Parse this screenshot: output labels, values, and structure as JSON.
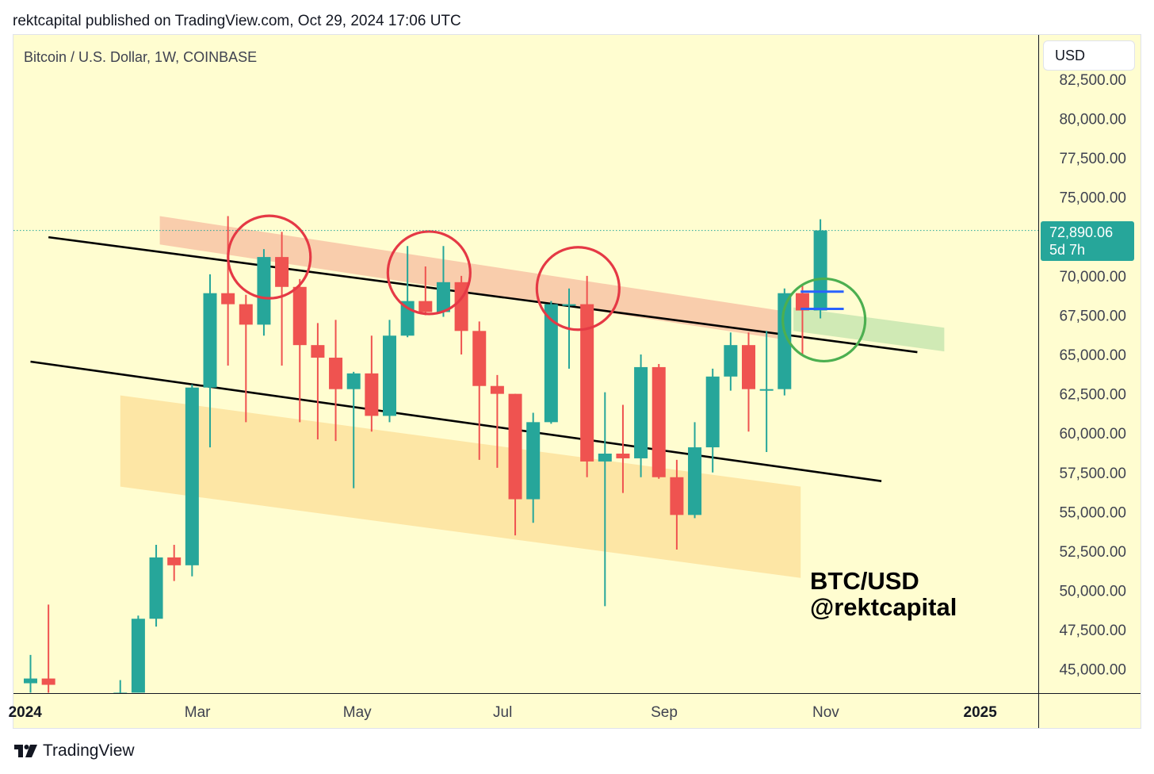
{
  "header": {
    "published": "rektcapital published on TradingView.com, Oct 29, 2024 17:06 UTC"
  },
  "symbol": {
    "title": "Bitcoin / U.S. Dollar, 1W, COINBASE"
  },
  "currency_button": {
    "label": "USD"
  },
  "last_price": {
    "value": "72,890.06",
    "countdown": "5d 7h"
  },
  "watermark": {
    "line1": "BTC/USD",
    "line2": "@rektcapital"
  },
  "footer": {
    "brand": "TradingView"
  },
  "colors": {
    "up": "#26a69a",
    "down": "#ef5350",
    "background": "#fffdd0",
    "resistance_zone": "#f8c4a6",
    "support_zone": "#fde3a0",
    "breakout_zone": "#c8e6b0",
    "circle_red": "#e53945",
    "circle_green": "#4caf50",
    "retest_marker": "#2962ff"
  },
  "chart_data": {
    "type": "candlestick",
    "timeframe": "1W",
    "ylim": [
      43500,
      83000
    ],
    "price_axis_ticks": [
      "82,500.00",
      "80,000.00",
      "77,500.00",
      "75,000.00",
      "70,000.00",
      "67,500.00",
      "65,000.00",
      "62,500.00",
      "60,000.00",
      "57,500.00",
      "55,000.00",
      "52,500.00",
      "50,000.00",
      "47,500.00",
      "45,000.00"
    ],
    "time_axis_labels": [
      "2024",
      "Mar",
      "May",
      "Jul",
      "Sep",
      "Nov",
      "2025"
    ],
    "time_axis_bold": [
      "2024",
      "2025"
    ],
    "last_price": 72890.06,
    "candles": [
      {
        "i": 0,
        "o": 44100,
        "h": 45900,
        "l": 43500,
        "c": 44400
      },
      {
        "i": 1,
        "o": 44400,
        "h": 49100,
        "l": 43500,
        "c": 44000
      },
      {
        "i": 5,
        "o": 43500,
        "h": 44300,
        "l": 43500,
        "c": 43500
      },
      {
        "i": 6,
        "o": 43500,
        "h": 48400,
        "l": 43500,
        "c": 48200
      },
      {
        "i": 7,
        "o": 48200,
        "h": 52900,
        "l": 47700,
        "c": 52100
      },
      {
        "i": 8,
        "o": 52100,
        "h": 52900,
        "l": 50600,
        "c": 51600
      },
      {
        "i": 9,
        "o": 51600,
        "h": 63100,
        "l": 50900,
        "c": 62900
      },
      {
        "i": 10,
        "o": 62900,
        "h": 70100,
        "l": 59100,
        "c": 68900
      },
      {
        "i": 11,
        "o": 68900,
        "h": 73800,
        "l": 64300,
        "c": 68200
      },
      {
        "i": 12,
        "o": 68200,
        "h": 68800,
        "l": 60700,
        "c": 66900
      },
      {
        "i": 13,
        "o": 66900,
        "h": 71700,
        "l": 66200,
        "c": 71200
      },
      {
        "i": 14,
        "o": 71200,
        "h": 72800,
        "l": 64300,
        "c": 69300
      },
      {
        "i": 15,
        "o": 69300,
        "h": 69800,
        "l": 60700,
        "c": 65600
      },
      {
        "i": 16,
        "o": 65600,
        "h": 67000,
        "l": 59600,
        "c": 64800
      },
      {
        "i": 17,
        "o": 64800,
        "h": 67200,
        "l": 59500,
        "c": 62800
      },
      {
        "i": 18,
        "o": 62800,
        "h": 63900,
        "l": 56500,
        "c": 63800
      },
      {
        "i": 19,
        "o": 63800,
        "h": 66200,
        "l": 60100,
        "c": 61100
      },
      {
        "i": 20,
        "o": 61100,
        "h": 67200,
        "l": 60700,
        "c": 66200
      },
      {
        "i": 21,
        "o": 66200,
        "h": 71900,
        "l": 66100,
        "c": 68400
      },
      {
        "i": 22,
        "o": 68400,
        "h": 70600,
        "l": 67500,
        "c": 67700
      },
      {
        "i": 23,
        "o": 67700,
        "h": 71900,
        "l": 67400,
        "c": 69600
      },
      {
        "i": 24,
        "o": 69600,
        "h": 70000,
        "l": 65000,
        "c": 66500
      },
      {
        "i": 25,
        "o": 66500,
        "h": 67100,
        "l": 58300,
        "c": 63000
      },
      {
        "i": 26,
        "o": 63000,
        "h": 63700,
        "l": 57800,
        "c": 62500
      },
      {
        "i": 27,
        "o": 62500,
        "h": 62500,
        "l": 53500,
        "c": 55800
      },
      {
        "i": 28,
        "o": 55800,
        "h": 61300,
        "l": 54300,
        "c": 60700
      },
      {
        "i": 29,
        "o": 60700,
        "h": 68400,
        "l": 60600,
        "c": 68200
      },
      {
        "i": 30,
        "o": 68200,
        "h": 69200,
        "l": 64100,
        "c": 68200
      },
      {
        "i": 31,
        "o": 68200,
        "h": 70000,
        "l": 57200,
        "c": 58200
      },
      {
        "i": 32,
        "o": 58200,
        "h": 62600,
        "l": 49000,
        "c": 58700
      },
      {
        "i": 33,
        "o": 58700,
        "h": 61800,
        "l": 56200,
        "c": 58400
      },
      {
        "i": 34,
        "o": 58400,
        "h": 65000,
        "l": 57200,
        "c": 64200
      },
      {
        "i": 35,
        "o": 64200,
        "h": 64400,
        "l": 57100,
        "c": 57200
      },
      {
        "i": 36,
        "o": 57200,
        "h": 58300,
        "l": 52600,
        "c": 54800
      },
      {
        "i": 37,
        "o": 54800,
        "h": 60700,
        "l": 54600,
        "c": 59100
      },
      {
        "i": 38,
        "o": 59100,
        "h": 64100,
        "l": 57500,
        "c": 63600
      },
      {
        "i": 39,
        "o": 63600,
        "h": 66400,
        "l": 62700,
        "c": 65600
      },
      {
        "i": 40,
        "o": 65600,
        "h": 66400,
        "l": 60100,
        "c": 62800
      },
      {
        "i": 41,
        "o": 62800,
        "h": 66500,
        "l": 58800,
        "c": 62800
      },
      {
        "i": 42,
        "o": 62800,
        "h": 69200,
        "l": 62400,
        "c": 68900
      },
      {
        "i": 43,
        "o": 68900,
        "h": 69500,
        "l": 65000,
        "c": 67800
      },
      {
        "i": 44,
        "o": 67800,
        "h": 73600,
        "l": 67300,
        "c": 72890.06
      }
    ],
    "trendlines": [
      {
        "name": "upper",
        "from": {
          "i": 1,
          "p": 72460
        },
        "to": {
          "i": 49.4,
          "p": 65150
        }
      },
      {
        "name": "lower",
        "from": {
          "i": 0,
          "p": 64550
        },
        "to": {
          "i": 47.4,
          "p": 56950
        }
      }
    ],
    "zones": [
      {
        "name": "resistance",
        "from_i": 7.2,
        "to_i": 42.3,
        "top_start": 73800,
        "top_end": 67700,
        "height": 1800
      },
      {
        "name": "support",
        "from_i": 5,
        "to_i": 42.9,
        "top_start": 62400,
        "top_end": 56600,
        "height": 5800
      },
      {
        "name": "breakout",
        "from_i": 42.5,
        "to_i": 50.9,
        "top_start": 68000,
        "top_end": 66700,
        "height": 1500
      }
    ],
    "circles": [
      {
        "color": "red",
        "i": 13.3,
        "p": 71200
      },
      {
        "color": "red",
        "i": 22.2,
        "p": 70200
      },
      {
        "color": "red",
        "i": 30.5,
        "p": 69200
      },
      {
        "color": "green",
        "i": 44.2,
        "p": 67200
      }
    ],
    "retest_levels": [
      69000,
      67900
    ]
  }
}
